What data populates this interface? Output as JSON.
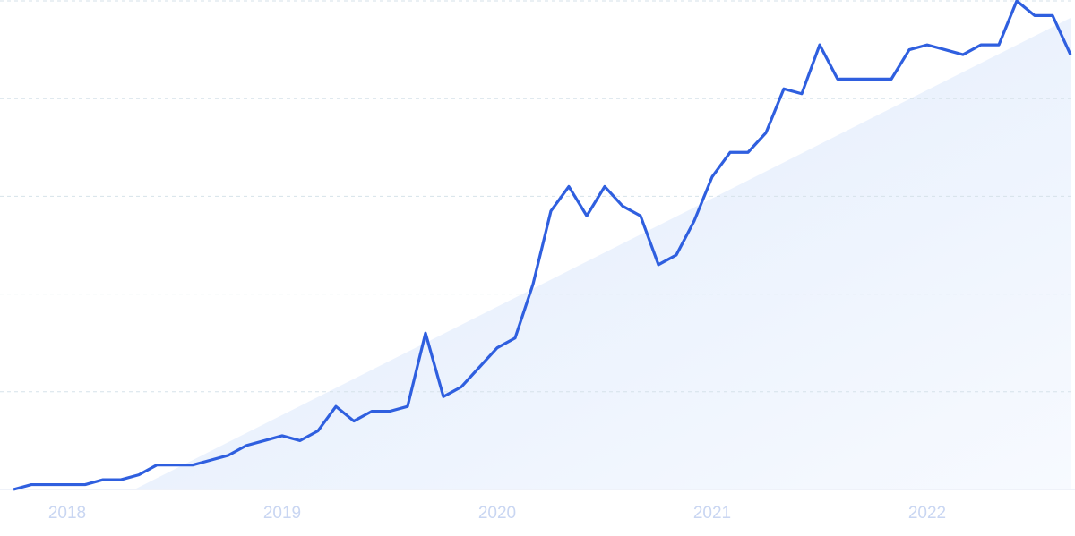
{
  "chart_data": {
    "type": "line",
    "categories": [
      null,
      null,
      null,
      "2018",
      null,
      null,
      null,
      null,
      null,
      null,
      null,
      null,
      null,
      null,
      null,
      "2019",
      null,
      null,
      null,
      null,
      null,
      null,
      null,
      null,
      null,
      null,
      null,
      "2020",
      null,
      null,
      null,
      null,
      null,
      null,
      null,
      null,
      null,
      null,
      null,
      "2021",
      null,
      null,
      null,
      null,
      null,
      null,
      null,
      null,
      null,
      null,
      null,
      "2022",
      null,
      null,
      null,
      null,
      null,
      null,
      null,
      null
    ],
    "series": [
      {
        "color": "#2f5fdf",
        "values": [
          0,
          1,
          1,
          1,
          1,
          2,
          2,
          3,
          5,
          5,
          5,
          6,
          7,
          9,
          10,
          11,
          10,
          12,
          17,
          14,
          16,
          16,
          17,
          32,
          19,
          21,
          25,
          29,
          31,
          42,
          57,
          62,
          56,
          62,
          58,
          56,
          46,
          48,
          55,
          64,
          69,
          69,
          73,
          82,
          81,
          91,
          84,
          84,
          84,
          84,
          90,
          91,
          90,
          89,
          91,
          91,
          100,
          97,
          97,
          89
        ]
      }
    ],
    "ylim": [
      0,
      100
    ],
    "yticks": [
      0,
      20,
      40,
      60,
      80,
      100
    ],
    "grid": true
  }
}
